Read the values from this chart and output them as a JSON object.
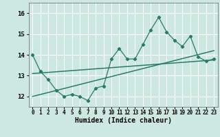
{
  "title": "",
  "xlabel": "Humidex (Indice chaleur)",
  "ylabel": "",
  "bg_color": "#cce8e0",
  "grid_color": "#ffffff",
  "line_color": "#2a7a6a",
  "xlim": [
    -0.5,
    23.5
  ],
  "ylim": [
    11.5,
    16.5
  ],
  "yticks": [
    12,
    13,
    14,
    15,
    16
  ],
  "xtick_labels": [
    "0",
    "1",
    "2",
    "3",
    "4",
    "5",
    "6",
    "7",
    "8",
    "9",
    "10",
    "11",
    "12",
    "13",
    "14",
    "15",
    "16",
    "17",
    "18",
    "19",
    "20",
    "21",
    "22",
    "23"
  ],
  "scatter_x": [
    0,
    1,
    2,
    3,
    4,
    5,
    6,
    7,
    8,
    9,
    10,
    11,
    12,
    13,
    14,
    15,
    16,
    17,
    18,
    19,
    20,
    21,
    22,
    23
  ],
  "scatter_y": [
    14.0,
    13.2,
    12.8,
    12.3,
    12.0,
    12.1,
    12.0,
    11.8,
    12.4,
    12.5,
    13.8,
    14.3,
    13.8,
    13.8,
    14.5,
    15.2,
    15.8,
    15.1,
    14.7,
    14.4,
    14.9,
    13.9,
    13.7,
    13.8
  ],
  "trend1_x": [
    0,
    23
  ],
  "trend1_y": [
    13.1,
    13.75
  ],
  "trend2_x": [
    0,
    23
  ],
  "trend2_y": [
    12.0,
    14.2
  ]
}
